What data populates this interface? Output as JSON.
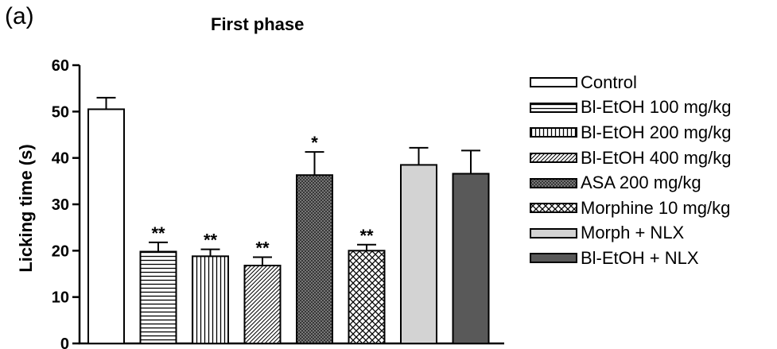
{
  "panel_label": "(a)",
  "chart_data": {
    "type": "bar",
    "title": "First phase",
    "xlabel": "",
    "ylabel": "Licking time (s)",
    "ylim": [
      0,
      60
    ],
    "yticks": [
      "0",
      "10",
      "20",
      "30",
      "40",
      "50",
      "60"
    ],
    "grid": false,
    "legend_position": "right",
    "categories": [
      "Control",
      "Bl-EtOH 100 mg/kg",
      "Bl-EtOH 200 mg/kg",
      "Bl-EtOH 400 mg/kg",
      "ASA 200 mg/kg",
      "Morphine 10 mg/kg",
      "Morph + NLX",
      "Bl-EtOH + NLX"
    ],
    "values": [
      50.5,
      19.8,
      18.8,
      16.8,
      36.3,
      20.0,
      38.5,
      36.6
    ],
    "errors": [
      2.5,
      2.0,
      1.5,
      1.8,
      5.0,
      1.3,
      3.7,
      5.0
    ],
    "significance": [
      "",
      "**",
      "**",
      "**",
      "*",
      "**",
      "",
      ""
    ],
    "patterns": [
      "white",
      "horizontal",
      "vertical",
      "diagonal",
      "crosshatch-dark",
      "diamond",
      "light-gray",
      "dark-gray"
    ],
    "colors": {
      "light_gray": "#d3d3d3",
      "dark_gray": "#595959",
      "crosshatch": "#8a8a8a"
    }
  }
}
